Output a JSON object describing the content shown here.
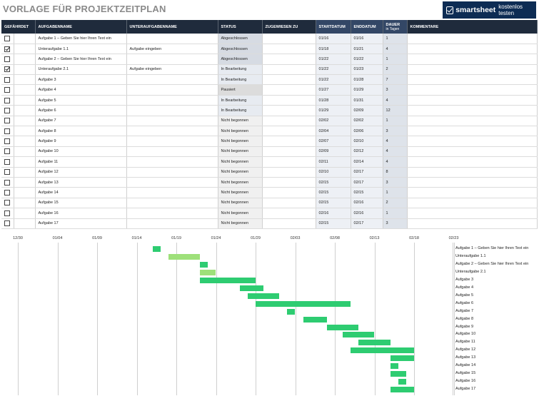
{
  "page_title": "VORLAGE FÜR PROJEKTZEITPLAN",
  "logo": {
    "brand": "smartsheet",
    "cta": "kostenlos testen"
  },
  "columns": {
    "risk": "GEFÄHRDET",
    "task": "AUFGABENNAME",
    "subtask": "UNTERAUFGABENNAME",
    "status": "STATUS",
    "assigned": "ZUGEWIESEN ZU",
    "start": "STARTDATUM",
    "end": "ENDDATUM",
    "duration": "DAUER",
    "duration_unit": "in Tagen",
    "comments": "KOMMENTARE"
  },
  "rows": [
    {
      "risk": false,
      "task": "Aufgabe 1 – Geben Sie hier Ihren Text ein",
      "subtask": "",
      "status": "Abgeschlossen",
      "start": "01/16",
      "end": "01/16",
      "duration": "1"
    },
    {
      "risk": true,
      "task": "Unteraufgabe 1.1",
      "subtask": "Aufgabe eingeben",
      "status": "Abgeschlossen",
      "start": "01/18",
      "end": "01/21",
      "duration": "4"
    },
    {
      "risk": false,
      "task": "Aufgabe 2 – Geben Sie hier Ihren Text ein",
      "subtask": "",
      "status": "Abgeschlossen",
      "start": "01/22",
      "end": "01/22",
      "duration": "1"
    },
    {
      "risk": true,
      "task": "Unteraufgabe 2.1",
      "subtask": "Aufgabe eingeben",
      "status": "In Bearbeitung",
      "start": "01/22",
      "end": "01/23",
      "duration": "2"
    },
    {
      "risk": false,
      "task": "Aufgabe 3",
      "subtask": "",
      "status": "In Bearbeitung",
      "start": "01/22",
      "end": "01/28",
      "duration": "7"
    },
    {
      "risk": false,
      "task": "Aufgabe 4",
      "subtask": "",
      "status": "Pausiert",
      "start": "01/27",
      "end": "01/29",
      "duration": "3"
    },
    {
      "risk": false,
      "task": "Aufgabe 5",
      "subtask": "",
      "status": "In Bearbeitung",
      "start": "01/28",
      "end": "01/31",
      "duration": "4"
    },
    {
      "risk": false,
      "task": "Aufgabe 6",
      "subtask": "",
      "status": "In Bearbeitung",
      "start": "01/29",
      "end": "02/09",
      "duration": "12"
    },
    {
      "risk": false,
      "task": "Aufgabe 7",
      "subtask": "",
      "status": "Nicht begonnen",
      "start": "02/02",
      "end": "02/02",
      "duration": "1"
    },
    {
      "risk": false,
      "task": "Aufgabe 8",
      "subtask": "",
      "status": "Nicht begonnen",
      "start": "02/04",
      "end": "02/06",
      "duration": "3"
    },
    {
      "risk": false,
      "task": "Aufgabe 9",
      "subtask": "",
      "status": "Nicht begonnen",
      "start": "02/07",
      "end": "02/10",
      "duration": "4"
    },
    {
      "risk": false,
      "task": "Aufgabe 10",
      "subtask": "",
      "status": "Nicht begonnen",
      "start": "02/09",
      "end": "02/12",
      "duration": "4"
    },
    {
      "risk": false,
      "task": "Aufgabe 11",
      "subtask": "",
      "status": "Nicht begonnen",
      "start": "02/11",
      "end": "02/14",
      "duration": "4"
    },
    {
      "risk": false,
      "task": "Aufgabe 12",
      "subtask": "",
      "status": "Nicht begonnen",
      "start": "02/10",
      "end": "02/17",
      "duration": "8"
    },
    {
      "risk": false,
      "task": "Aufgabe 13",
      "subtask": "",
      "status": "Nicht begonnen",
      "start": "02/15",
      "end": "02/17",
      "duration": "3"
    },
    {
      "risk": false,
      "task": "Aufgabe 14",
      "subtask": "",
      "status": "Nicht begonnen",
      "start": "02/15",
      "end": "02/15",
      "duration": "1"
    },
    {
      "risk": false,
      "task": "Aufgabe 15",
      "subtask": "",
      "status": "Nicht begonnen",
      "start": "02/15",
      "end": "02/16",
      "duration": "2"
    },
    {
      "risk": false,
      "task": "Aufgabe 16",
      "subtask": "",
      "status": "Nicht begonnen",
      "start": "02/16",
      "end": "02/16",
      "duration": "1"
    },
    {
      "risk": false,
      "task": "Aufgabe 17",
      "subtask": "",
      "status": "Nicht begonnen",
      "start": "02/15",
      "end": "02/17",
      "duration": "3"
    }
  ],
  "gantt": {
    "axis_labels": [
      "12/30",
      "01/04",
      "01/09",
      "01/14",
      "01/19",
      "01/24",
      "01/29",
      "02/03",
      "02/08",
      "02/13",
      "02/18",
      "02/23"
    ],
    "colors": {
      "bar": "#2ecc71",
      "subtask_bar": "#9ee07a"
    }
  },
  "chart_data": {
    "type": "bar",
    "title": "",
    "xlabel": "",
    "ylabel": "",
    "xticks": [
      "12/30",
      "01/04",
      "01/09",
      "01/14",
      "01/19",
      "01/24",
      "01/29",
      "02/03",
      "02/08",
      "02/13",
      "02/18",
      "02/23"
    ],
    "categories": [
      "Aufgabe 1 – Geben Sie hier Ihren Text ein",
      "Unteraufgabe 1.1",
      "Aufgabe 2 – Geben Sie hier Ihren Text ein",
      "Unteraufgabe 2.1",
      "Aufgabe 3",
      "Aufgabe 4",
      "Aufgabe 5",
      "Aufgabe 6",
      "Aufgabe 7",
      "Aufgabe 8",
      "Aufgabe 9",
      "Aufgabe 10",
      "Aufgabe 11",
      "Aufgabe 12",
      "Aufgabe 13",
      "Aufgabe 14",
      "Aufgabe 15",
      "Aufgabe 16",
      "Aufgabe 17"
    ],
    "start": [
      "01/16",
      "01/18",
      "01/22",
      "01/22",
      "01/22",
      "01/27",
      "01/28",
      "01/29",
      "02/02",
      "02/04",
      "02/07",
      "02/09",
      "02/11",
      "02/10",
      "02/15",
      "02/15",
      "02/15",
      "02/16",
      "02/15"
    ],
    "duration_days": [
      1,
      4,
      1,
      2,
      7,
      3,
      4,
      12,
      1,
      3,
      4,
      4,
      4,
      8,
      3,
      1,
      2,
      1,
      3
    ],
    "grid": true
  }
}
